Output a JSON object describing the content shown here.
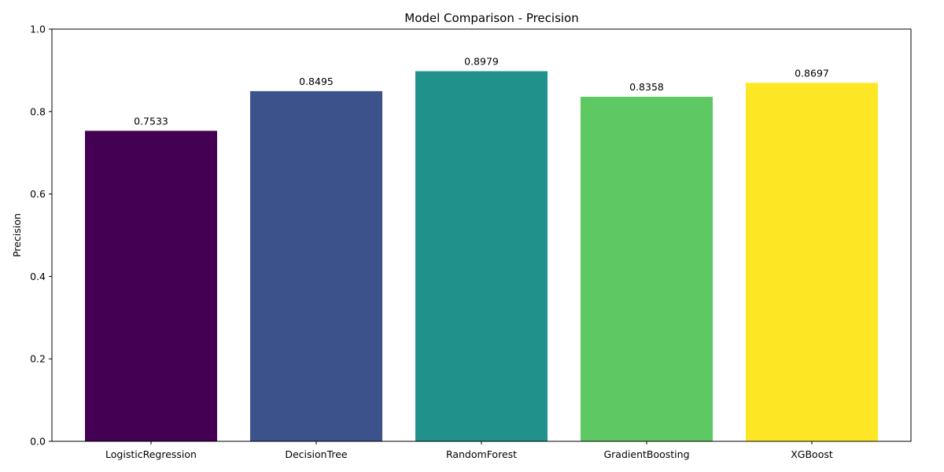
{
  "chart_data": {
    "type": "bar",
    "title": "Model Comparison - Precision",
    "xlabel": "",
    "ylabel": "Precision",
    "categories": [
      "LogisticRegression",
      "DecisionTree",
      "RandomForest",
      "GradientBoosting",
      "XGBoost"
    ],
    "values": [
      0.7533,
      0.8495,
      0.8979,
      0.8358,
      0.8697
    ],
    "data_labels": [
      "0.7533",
      "0.8495",
      "0.8979",
      "0.8358",
      "0.8697"
    ],
    "colors": [
      "#440154",
      "#3b528b",
      "#21918c",
      "#5ec962",
      "#fde725"
    ],
    "ylim": [
      0,
      1.0
    ],
    "yticks": [
      0.0,
      0.2,
      0.4,
      0.6,
      0.8,
      1.0
    ],
    "ytick_labels": [
      "0.0",
      "0.2",
      "0.4",
      "0.6",
      "0.8",
      "1.0"
    ],
    "grid": false,
    "legend": "none"
  }
}
